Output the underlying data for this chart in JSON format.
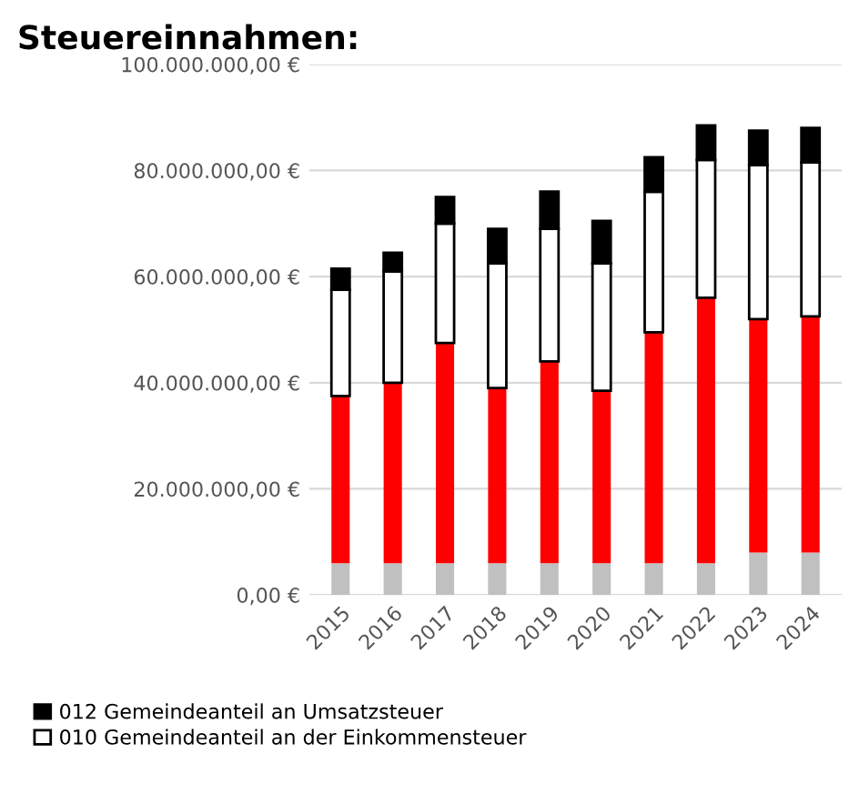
{
  "chart_data": {
    "type": "bar",
    "title": "Steuereinnahmen:",
    "stacked": true,
    "categories": [
      "2015",
      "2016",
      "2017",
      "2018",
      "2019",
      "2020",
      "2021",
      "2022",
      "2023",
      "2024"
    ],
    "series": [
      {
        "color": "#c0c0c0",
        "values": [
          6000000,
          6000000,
          6000000,
          6000000,
          6000000,
          6000000,
          6000000,
          6000000,
          8000000,
          8000000
        ]
      },
      {
        "color": "#ff0000",
        "values": [
          31500000,
          34000000,
          41500000,
          33000000,
          38000000,
          32500000,
          43500000,
          50000000,
          44000000,
          44500000
        ]
      },
      {
        "name": "010 Gemeindeanteil an der Einkommensteuer",
        "color": "#ffffff",
        "values": [
          20000000,
          21000000,
          22500000,
          23500000,
          25000000,
          24000000,
          26500000,
          26000000,
          29000000,
          29000000
        ]
      },
      {
        "name": "012 Gemeindeanteil an Umsatzsteuer",
        "color": "#000000",
        "values": [
          4000000,
          3500000,
          5000000,
          6500000,
          7000000,
          8000000,
          6500000,
          6500000,
          6500000,
          6500000
        ]
      }
    ],
    "ylim": [
      0,
      100000000
    ],
    "yticks": [
      {
        "value": 0,
        "label": "0,00 €"
      },
      {
        "value": 20000000,
        "label": "20.000.000,00 €"
      },
      {
        "value": 40000000,
        "label": "40.000.000,00 €"
      },
      {
        "value": 60000000,
        "label": "60.000.000,00 €"
      },
      {
        "value": 80000000,
        "label": "80.000.000,00 €"
      },
      {
        "value": 100000000,
        "label": "100.000.000,00 €"
      }
    ],
    "grid": "y",
    "legend": "bottom"
  }
}
